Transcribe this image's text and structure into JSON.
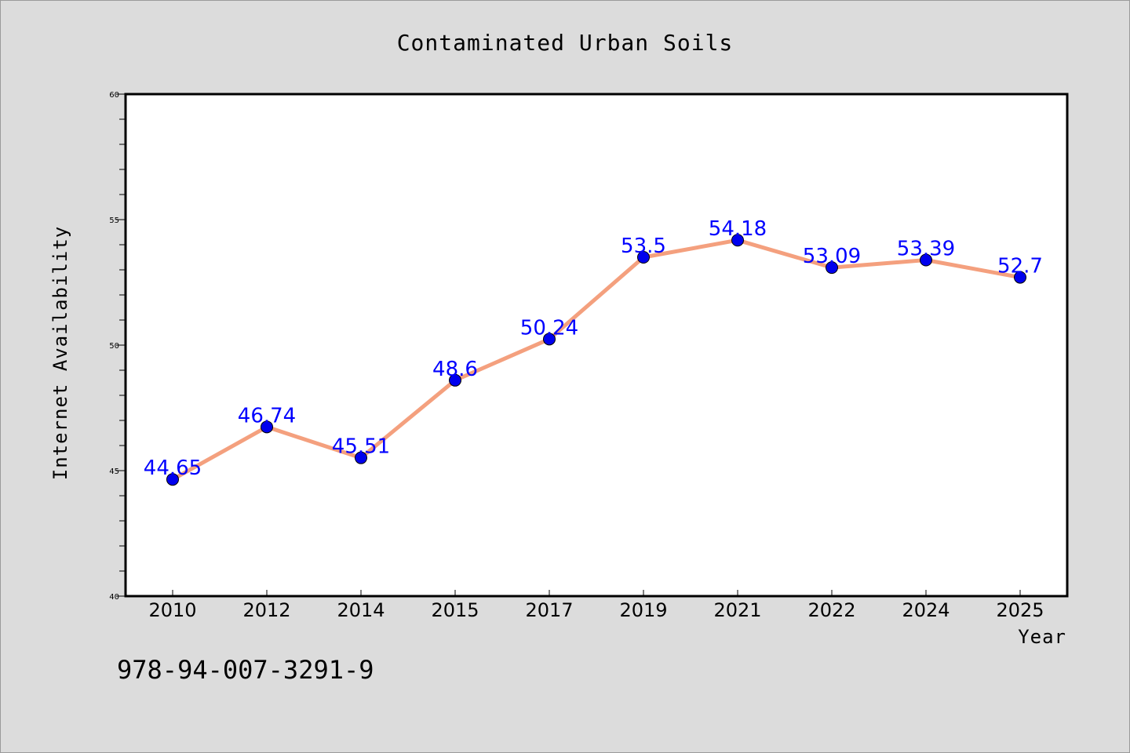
{
  "chart_data": {
    "type": "line",
    "title": "Contaminated Urban Soils",
    "xlabel": "Year",
    "ylabel": "Internet Availability",
    "categories": [
      "2010",
      "2012",
      "2014",
      "2015",
      "2017",
      "2019",
      "2021",
      "2022",
      "2024",
      "2025"
    ],
    "series": [
      {
        "values": [
          44.65,
          46.74,
          45.51,
          48.6,
          50.24,
          53.5,
          54.18,
          53.09,
          53.39,
          52.7
        ],
        "labels": [
          "44.65",
          "46.74",
          "45.51",
          "48.6",
          "50.24",
          "53.5",
          "54.18",
          "53.09",
          "53.39",
          "52.7"
        ],
        "line_color": "#f4a07e",
        "marker_color": "#0000ee"
      }
    ],
    "ylim": [
      40,
      60
    ],
    "yticks": [
      "40",
      "45",
      "50",
      "55",
      "60"
    ],
    "grid": false,
    "legend": "none",
    "label_color": "#0000ff"
  },
  "annotation": "978-94-007-3291-9"
}
